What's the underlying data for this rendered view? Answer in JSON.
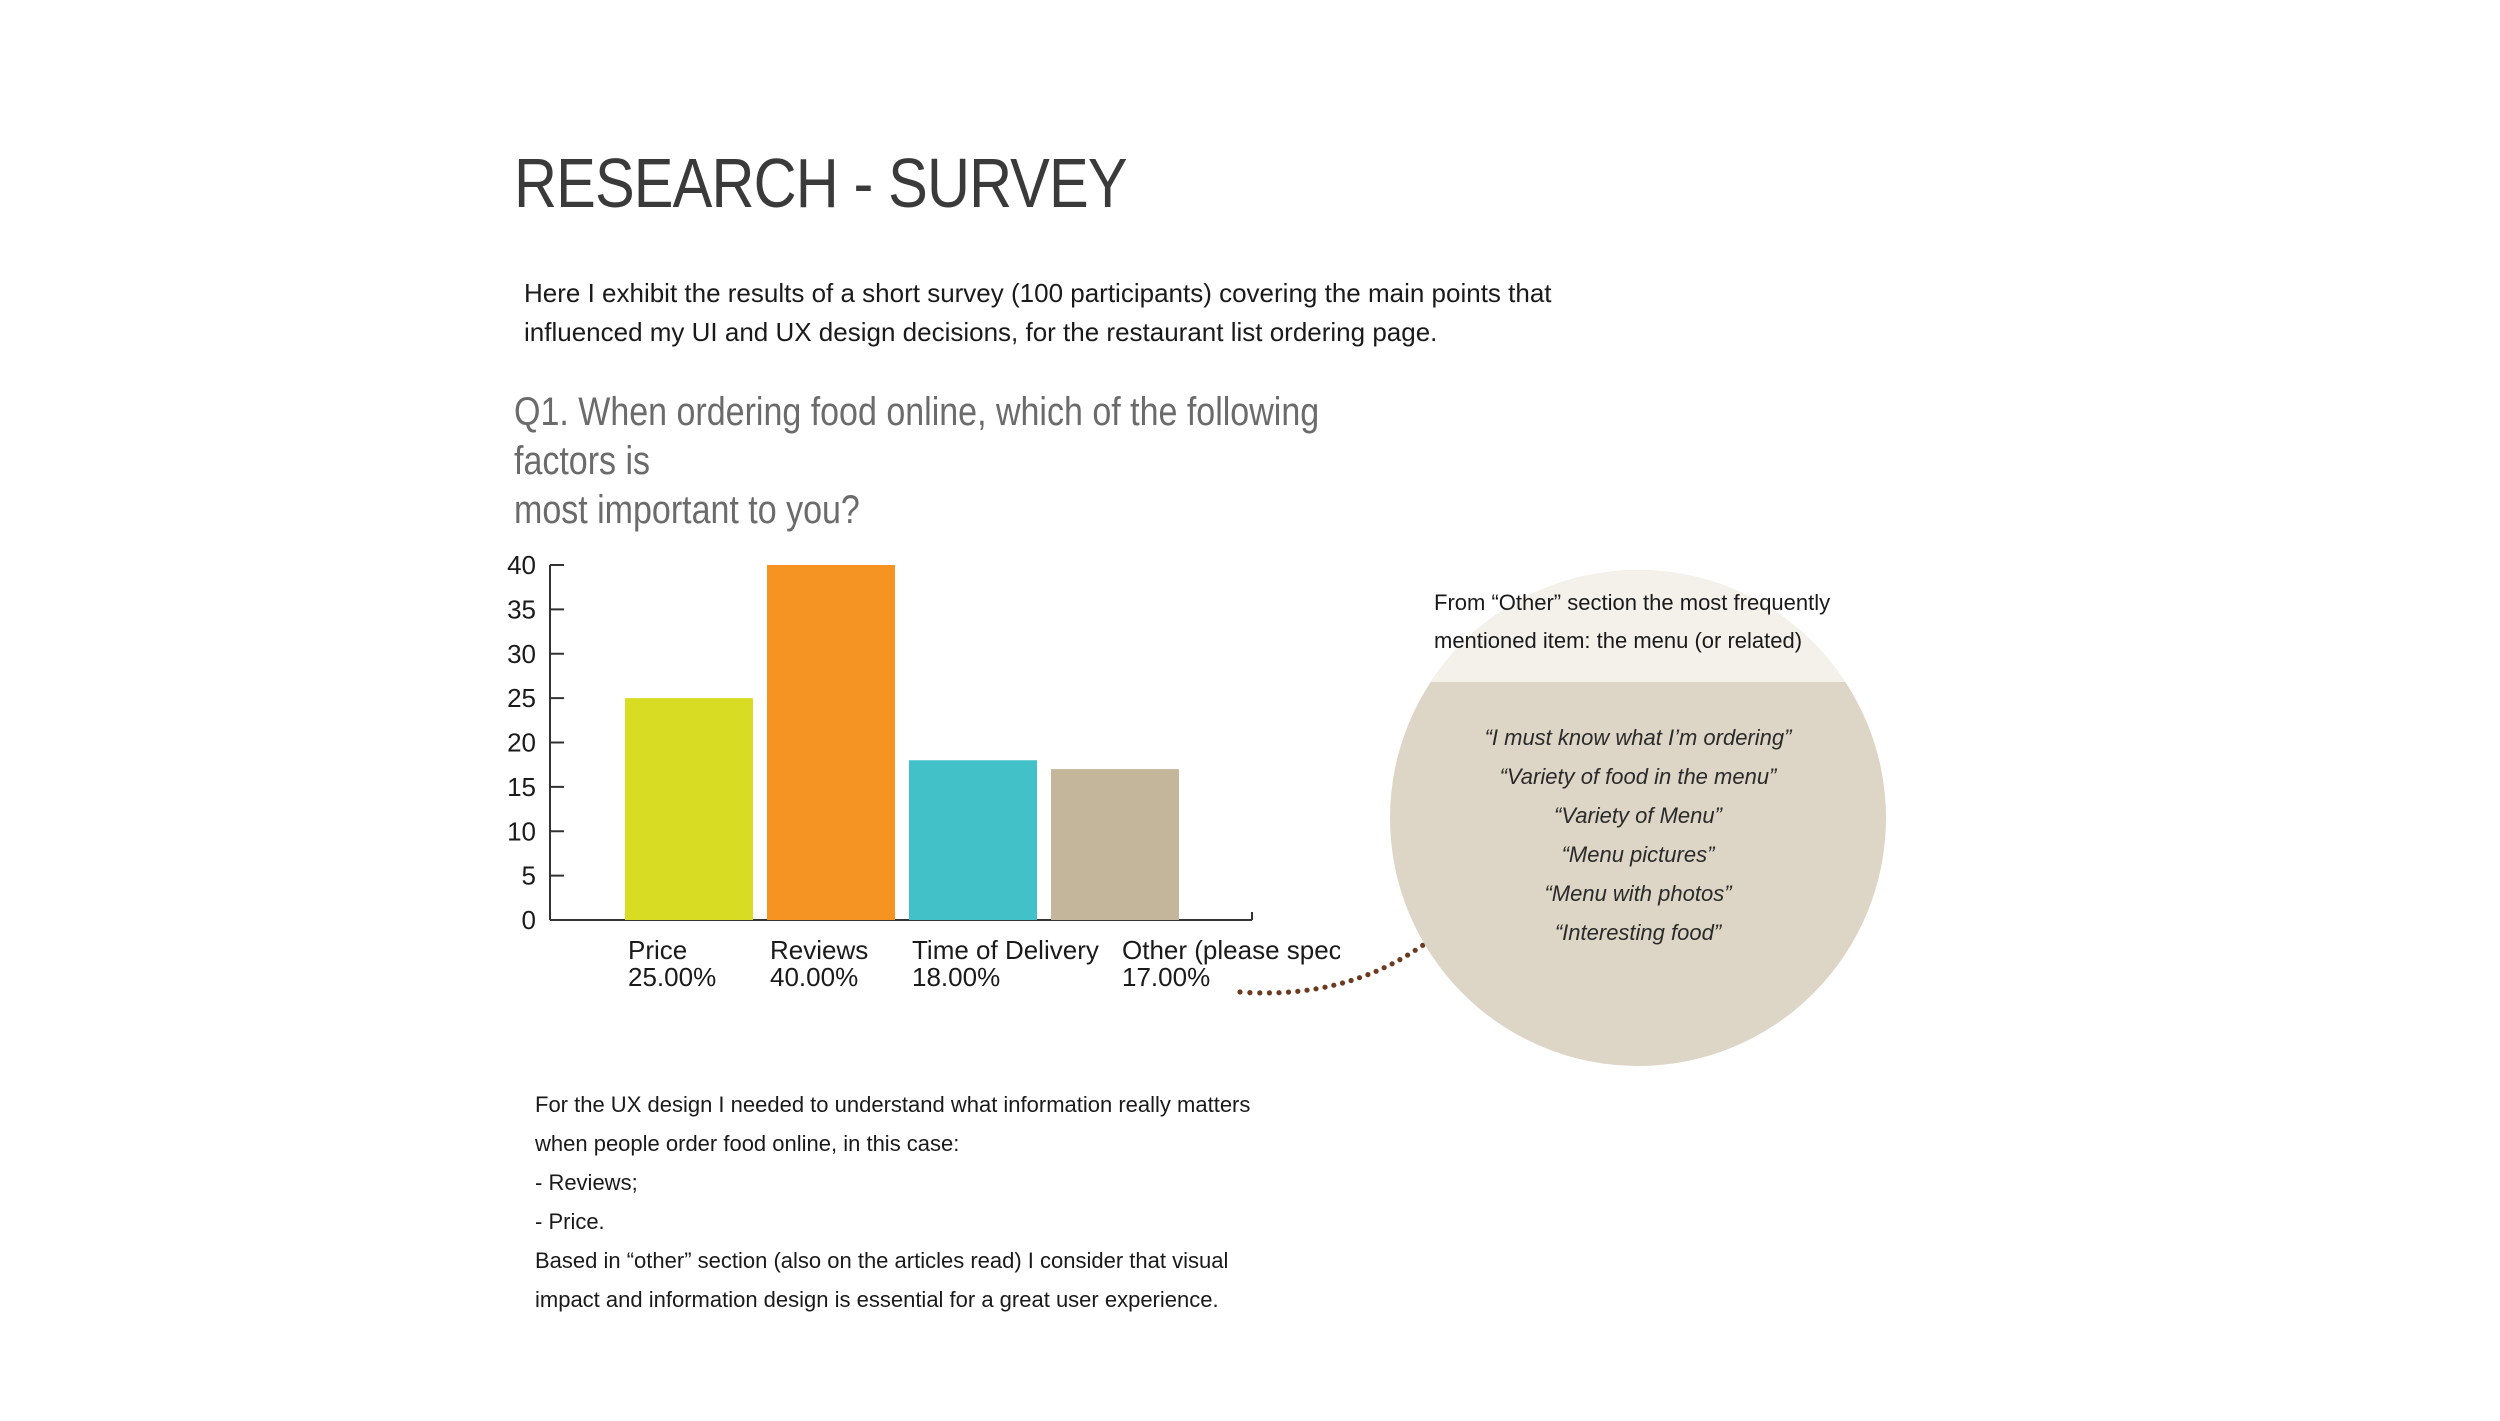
{
  "page": {
    "title": "RESEARCH - SURVEY",
    "intro_lines": [
      "Here I exhibit the results of a short survey (100 participants) covering the main points that",
      "influenced my UI and UX design decisions, for the restaurant list ordering page."
    ],
    "question_lines": [
      "Q1. When ordering food online, which of the following factors is",
      "most important to you?"
    ]
  },
  "chart_data": {
    "type": "bar",
    "categories": [
      "Price",
      "Reviews",
      "Time of Delivery",
      "Other (please specify)"
    ],
    "values": [
      25,
      40,
      18,
      17
    ],
    "value_labels": [
      "25.00%",
      "40.00%",
      "18.00%",
      "17.00%"
    ],
    "colors": [
      "#d8dd23",
      "#f59422",
      "#43c1c9",
      "#c4b69b"
    ],
    "yticks": [
      "0",
      "5",
      "10",
      "15",
      "20",
      "25",
      "30",
      "35",
      "40"
    ],
    "ylim": [
      0,
      40
    ],
    "title": "",
    "xlabel": "",
    "ylabel": ""
  },
  "callout": {
    "heading_lines": [
      "From “Other” section the most frequently",
      "mentioned item: the menu (or related)"
    ],
    "quotes": [
      "“I must know what I’m ordering”",
      "“Variety of food in the menu”",
      "“Variety of Menu”",
      "“Menu pictures”",
      "“Menu with photos”",
      "“Interesting food”"
    ],
    "bubble_color": "#ddd5c6",
    "dot_color": "#6b3a1f"
  },
  "footer": {
    "lines": [
      "For the UX design I needed to understand what information really matters",
      "when people order food online, in this case:",
      "- Reviews;",
      "- Price.",
      "Based in “other” section (also on the articles read) I consider that visual",
      "impact and information design is essential for a great user experience."
    ]
  }
}
